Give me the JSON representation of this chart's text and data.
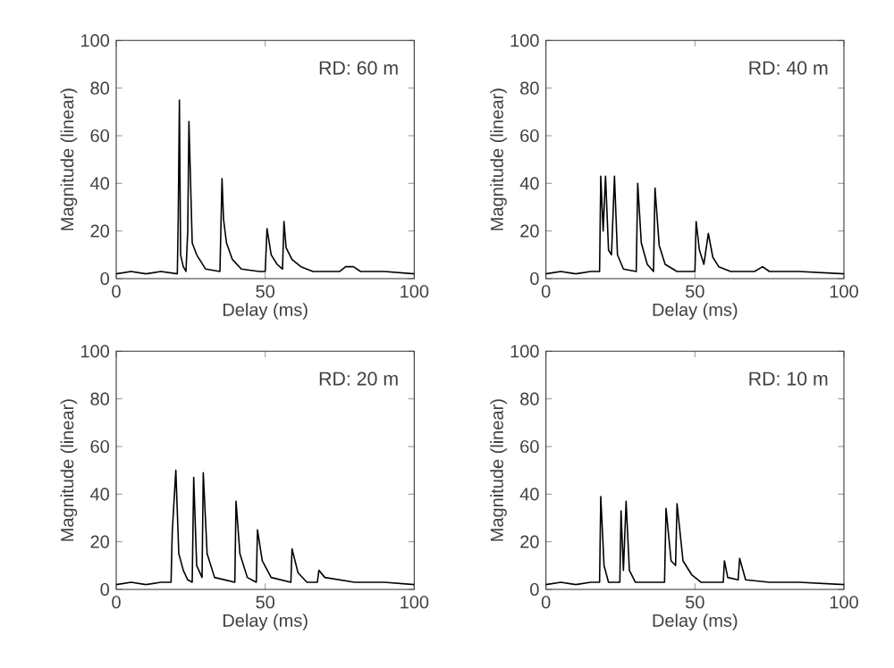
{
  "chart_data": [
    {
      "type": "line",
      "xlabel": "Delay (ms)",
      "ylabel": "Magnitude (linear)",
      "annotations": [
        "RD: 60 m"
      ],
      "xlim": [
        0,
        100
      ],
      "ylim": [
        0,
        100
      ],
      "xticks": [
        0,
        50,
        100
      ],
      "yticks": [
        0,
        20,
        40,
        60,
        80,
        100
      ],
      "series": [
        {
          "color": "#000000",
          "x": [
            0,
            5,
            10,
            15,
            20.5,
            20.8,
            21.2,
            21.6,
            22.5,
            23.4,
            24,
            24.4,
            25.5,
            27,
            30,
            34.8,
            35.5,
            36,
            37,
            39,
            42,
            48,
            49.8,
            50,
            50.6,
            52,
            54,
            55.8,
            56.3,
            57,
            59,
            62,
            66,
            75,
            77,
            79.6,
            82,
            90,
            100
          ],
          "values": [
            2,
            3,
            2,
            3,
            2,
            25,
            75,
            10,
            5,
            3,
            20,
            66,
            15,
            10,
            4,
            3,
            42,
            25,
            15,
            8,
            4,
            3,
            3,
            3,
            21,
            10,
            6,
            4,
            24,
            13,
            8,
            5,
            3,
            3,
            5,
            5,
            3,
            3,
            2
          ]
        }
      ]
    },
    {
      "type": "line",
      "xlabel": "Delay (ms)",
      "ylabel": "Magnitude (linear)",
      "annotations": [
        "RD: 40 m"
      ],
      "xlim": [
        0,
        100
      ],
      "ylim": [
        0,
        100
      ],
      "xticks": [
        0,
        50,
        100
      ],
      "yticks": [
        0,
        20,
        40,
        60,
        80,
        100
      ],
      "series": [
        {
          "color": "#000000",
          "x": [
            0,
            5,
            10,
            15,
            18,
            18.4,
            19.2,
            20,
            21,
            22,
            23,
            24,
            26,
            30.3,
            30.8,
            32,
            34,
            36.1,
            36.6,
            38,
            40,
            44,
            50,
            50.4,
            51.5,
            53,
            54.5,
            56,
            58,
            62,
            70,
            72.7,
            75,
            85,
            100
          ],
          "values": [
            2,
            3,
            2,
            3,
            3,
            43,
            20,
            43,
            12,
            10,
            43,
            10,
            4,
            3,
            40,
            15,
            6,
            3,
            38,
            14,
            6,
            3,
            3,
            24,
            12,
            6,
            19,
            9,
            5,
            3,
            3,
            5,
            3,
            3,
            2
          ]
        }
      ]
    },
    {
      "type": "line",
      "xlabel": "Delay (ms)",
      "ylabel": "Magnitude (linear)",
      "annotations": [
        "RD: 20 m"
      ],
      "xlim": [
        0,
        100
      ],
      "ylim": [
        0,
        100
      ],
      "xticks": [
        0,
        50,
        100
      ],
      "yticks": [
        0,
        20,
        40,
        60,
        80,
        100
      ],
      "series": [
        {
          "color": "#000000",
          "x": [
            0,
            5,
            10,
            15,
            18.4,
            18.8,
            20,
            21,
            22.5,
            24,
            25.5,
            26,
            27,
            28.8,
            29.2,
            30.5,
            33,
            39.8,
            40.2,
            41.5,
            44,
            47,
            47.4,
            49,
            52,
            58.6,
            59,
            61,
            64,
            67.5,
            68,
            70,
            80,
            90,
            100
          ],
          "values": [
            2,
            3,
            2,
            3,
            3,
            24,
            50,
            15,
            8,
            4,
            3,
            47,
            10,
            5,
            49,
            15,
            5,
            3,
            37,
            15,
            5,
            3,
            25,
            12,
            5,
            3,
            17,
            7,
            3,
            3,
            8,
            5,
            3,
            3,
            2
          ]
        }
      ]
    },
    {
      "type": "line",
      "xlabel": "Delay (ms)",
      "ylabel": "Magnitude (linear)",
      "annotations": [
        "RD: 10 m"
      ],
      "xlim": [
        0,
        100
      ],
      "ylim": [
        0,
        100
      ],
      "xticks": [
        0,
        50,
        100
      ],
      "yticks": [
        0,
        20,
        40,
        60,
        80,
        100
      ],
      "series": [
        {
          "color": "#000000",
          "x": [
            0,
            5,
            10,
            15,
            18,
            18.4,
            19.5,
            21,
            24.8,
            25.2,
            26,
            26.9,
            28,
            30,
            39.8,
            40.3,
            42,
            43.5,
            44,
            46,
            49,
            52,
            59.5,
            59.9,
            61,
            64.5,
            65,
            67,
            75,
            85,
            100
          ],
          "values": [
            2,
            3,
            2,
            3,
            3,
            39,
            10,
            3,
            3,
            33,
            8,
            37,
            8,
            3,
            3,
            34,
            12,
            10,
            36,
            12,
            6,
            3,
            3,
            12,
            5,
            4,
            13,
            4,
            3,
            3,
            2
          ]
        }
      ]
    }
  ]
}
